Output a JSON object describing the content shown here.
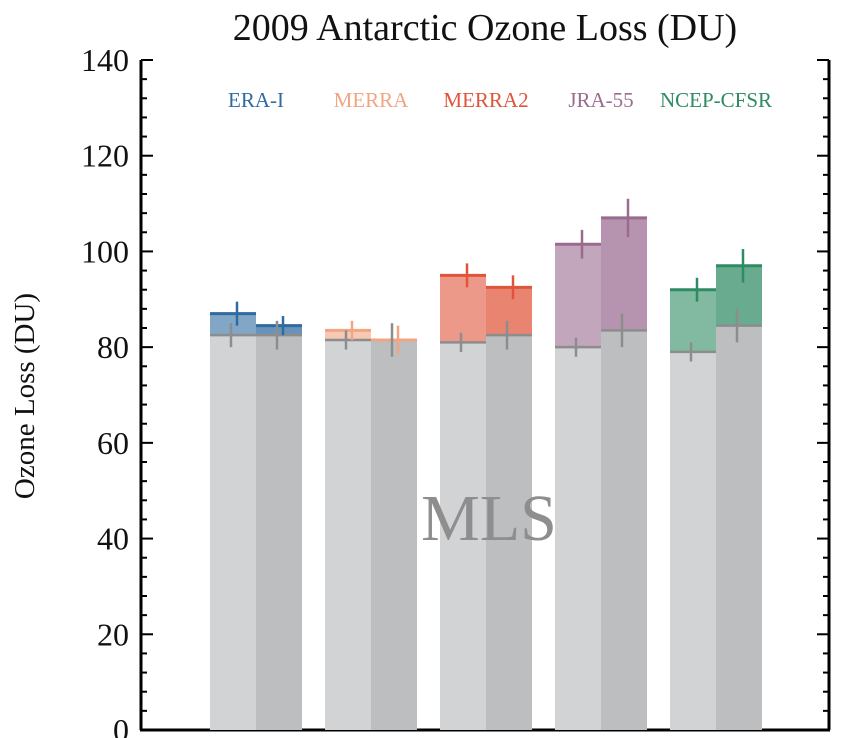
{
  "chart_data": {
    "type": "bar",
    "title": "2009 Antarctic Ozone Loss (DU)",
    "ylabel": "Ozone Loss (DU)",
    "xlabel": "",
    "ylim": [
      0,
      140
    ],
    "yticks": [
      "0",
      "20",
      "40",
      "60",
      "80",
      "100",
      "120",
      "140"
    ],
    "annotation": "MLS",
    "grid": false,
    "reanalyses": [
      {
        "name": "ERA-I",
        "color": "#2f6aa0",
        "bars": [
          {
            "mls": 82.5,
            "mls_err": 2.5,
            "value": 87,
            "err": 2.5
          },
          {
            "mls": 82.5,
            "mls_err": 3,
            "value": 84.5,
            "err": 2
          }
        ]
      },
      {
        "name": "MERRA",
        "color": "#f2a582",
        "bars": [
          {
            "mls": 81.5,
            "mls_err": 2,
            "value": 83.5,
            "err": 2
          },
          {
            "mls": 81.5,
            "mls_err": 3.5,
            "value": 81.5,
            "err": 3
          }
        ]
      },
      {
        "name": "MERRA2",
        "color": "#e0553a",
        "bars": [
          {
            "mls": 81,
            "mls_err": 2,
            "value": 95,
            "err": 2.5
          },
          {
            "mls": 82.5,
            "mls_err": 3,
            "value": 92.5,
            "err": 2.5
          }
        ]
      },
      {
        "name": "JRA-55",
        "color": "#9a6a8f",
        "bars": [
          {
            "mls": 80,
            "mls_err": 2,
            "value": 101.5,
            "err": 3
          },
          {
            "mls": 83.5,
            "mls_err": 3.5,
            "value": 107,
            "err": 4
          }
        ]
      },
      {
        "name": "NCEP-CFSR",
        "color": "#2e8b62",
        "bars": [
          {
            "mls": 79,
            "mls_err": 2,
            "value": 92,
            "err": 2.5
          },
          {
            "mls": 84.5,
            "mls_err": 3.5,
            "value": 97,
            "err": 3.5
          }
        ]
      }
    ]
  }
}
